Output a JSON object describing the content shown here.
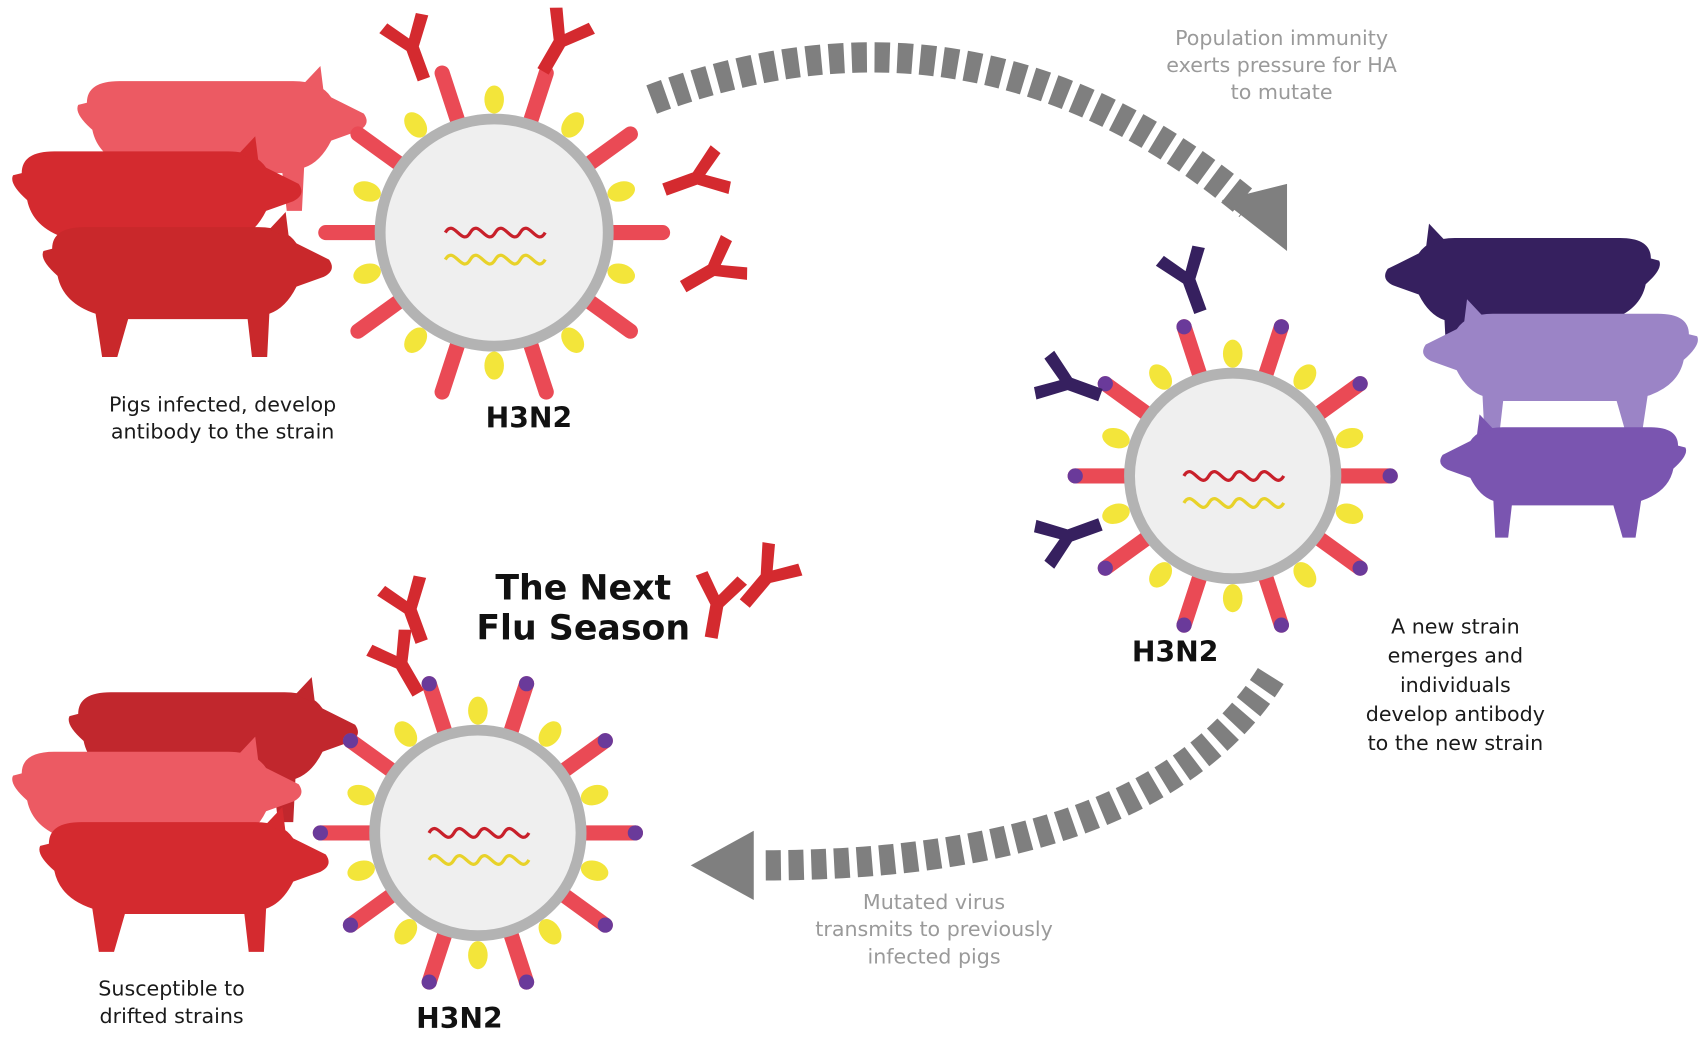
{
  "panels": [
    {
      "virus_label": "H3N2",
      "caption": [
        "Pigs infected, develop",
        "antibody to the strain"
      ]
    },
    {
      "virus_label": "H3N2",
      "caption": [
        "A new strain",
        "emerges and",
        "individuals",
        "develop antibody",
        "to the new strain"
      ]
    },
    {
      "virus_label": "H3N2",
      "caption": [
        "Susceptible to",
        "drifted strains"
      ]
    }
  ],
  "arrows": [
    {
      "caption": [
        "Population immunity",
        "exerts pressure for HA",
        "to mutate"
      ]
    },
    {
      "caption": [
        "Mutated virus",
        "transmits to previously",
        "infected pigs"
      ]
    }
  ],
  "season_title": [
    "The Next",
    "Flu Season"
  ]
}
